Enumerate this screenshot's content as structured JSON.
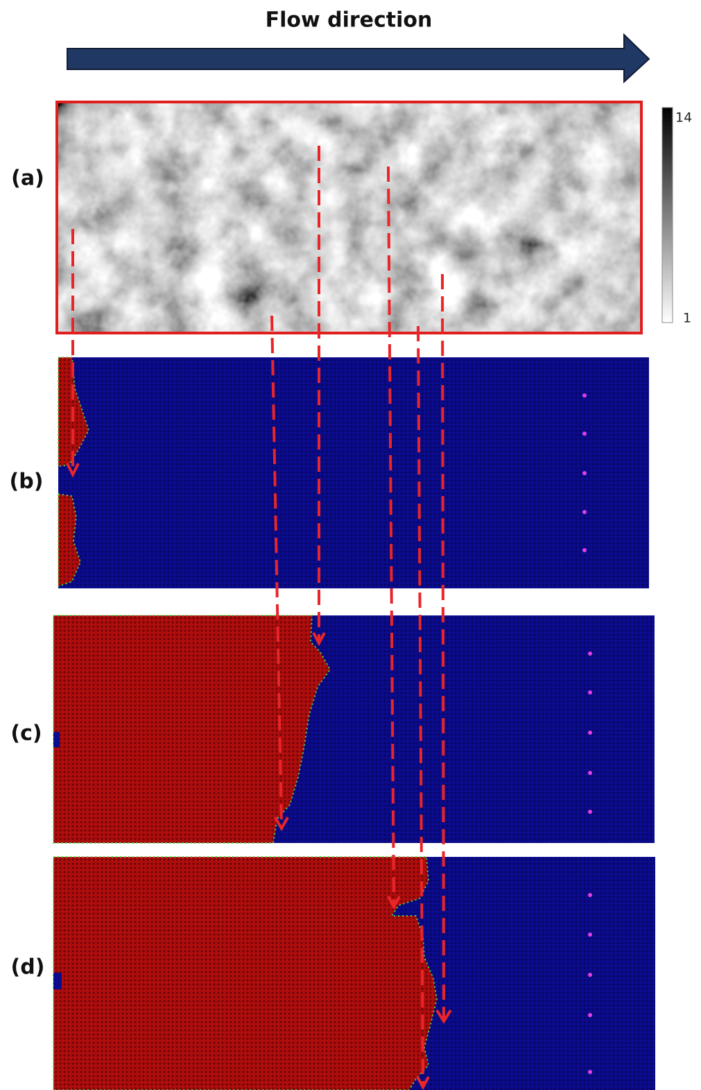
{
  "header": {
    "title": "Flow direction"
  },
  "panels": [
    {
      "label": "(a)"
    },
    {
      "label": "(b)"
    },
    {
      "label": "(c)"
    },
    {
      "label": "(d)"
    }
  ],
  "colorbar": {
    "max": 14,
    "min": 1
  }
}
